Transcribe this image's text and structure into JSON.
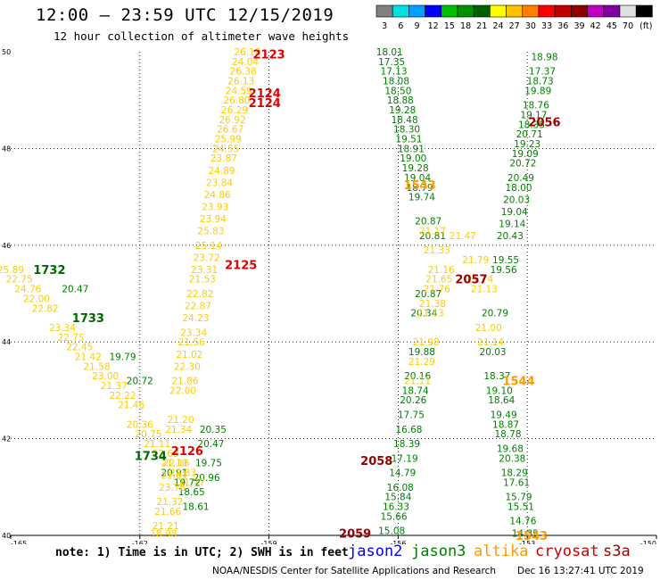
{
  "header": {
    "title": "12:00 – 23:59 UTC 12/15/2019",
    "subtitle": "12 hour collection of altimeter wave heights"
  },
  "colorbar": {
    "colors": [
      "#808080",
      "#00e0e0",
      "#00a0ff",
      "#0000ff",
      "#00c000",
      "#009000",
      "#006000",
      "#ffff00",
      "#ffc000",
      "#ff8000",
      "#ff0000",
      "#c00000",
      "#900000",
      "#c000c0",
      "#8000a0",
      "#e0e0e0",
      "#000000"
    ],
    "labels": [
      "3",
      "6",
      "9",
      "12",
      "15",
      "18",
      "21",
      "24",
      "27",
      "30",
      "33",
      "36",
      "39",
      "42",
      "45",
      "70",
      "(ft)"
    ]
  },
  "footer": {
    "note": "note: 1) Time is in UTC; 2) SWH is in feet",
    "satellites": [
      {
        "name": "jason2",
        "color": "#0000ff"
      },
      {
        "name": "jason3",
        "color": "#008000"
      },
      {
        "name": "altika",
        "color": "#ff9900"
      },
      {
        "name": "cryosat",
        "color": "#cc0000"
      },
      {
        "name": "s3a",
        "color": "#990000"
      }
    ],
    "credit": "NOAA/NESDIS Center for Satellite Applications and Research",
    "timestamp": "Dec 16 13:27:41 UTC 2019"
  },
  "chart_data": {
    "type": "scatter",
    "xlim": [
      -165,
      -150
    ],
    "ylim": [
      40,
      50
    ],
    "x_ticks": [
      "-165",
      "-162",
      "-159",
      "-156",
      "-153",
      "-150"
    ],
    "y_ticks": [
      "40",
      "42",
      "44",
      "46",
      "48",
      "50"
    ],
    "grid": true,
    "series": [
      {
        "name": "jason3",
        "color": "#008000",
        "points": [
          {
            "x": -156.2,
            "y": 50,
            "v": "18.01"
          },
          {
            "x": -156.15,
            "y": 49.8,
            "v": "17.35"
          },
          {
            "x": -156.1,
            "y": 49.6,
            "v": "17.13"
          },
          {
            "x": -156.05,
            "y": 49.4,
            "v": "18.08"
          },
          {
            "x": -156,
            "y": 49.2,
            "v": "18.50"
          },
          {
            "x": -155.95,
            "y": 49,
            "v": "18.88"
          },
          {
            "x": -155.9,
            "y": 48.8,
            "v": "19.28"
          },
          {
            "x": -155.85,
            "y": 48.6,
            "v": "18.48"
          },
          {
            "x": -155.8,
            "y": 48.4,
            "v": "18.30"
          },
          {
            "x": -155.75,
            "y": 48.2,
            "v": "19.51"
          },
          {
            "x": -155.7,
            "y": 48,
            "v": "18.91"
          },
          {
            "x": -155.65,
            "y": 47.8,
            "v": "19.00"
          },
          {
            "x": -155.6,
            "y": 47.6,
            "v": "19.28"
          },
          {
            "x": -155.55,
            "y": 47.4,
            "v": "19.04"
          },
          {
            "x": -155.5,
            "y": 47.2,
            "v": "18.79"
          },
          {
            "x": -155.45,
            "y": 47,
            "v": "19.74"
          },
          {
            "x": -155.3,
            "y": 46.5,
            "v": "20.87"
          },
          {
            "x": -155.2,
            "y": 46.2,
            "v": "20.81"
          },
          {
            "x": -155.3,
            "y": 45,
            "v": "20.87"
          },
          {
            "x": -155.4,
            "y": 44.6,
            "v": "20.34"
          },
          {
            "x": -155.45,
            "y": 43.8,
            "v": "19.88"
          },
          {
            "x": -155.55,
            "y": 43.3,
            "v": "20.16"
          },
          {
            "x": -155.6,
            "y": 43,
            "v": "18.74"
          },
          {
            "x": -155.65,
            "y": 42.8,
            "v": "20.26"
          },
          {
            "x": -155.7,
            "y": 42.5,
            "v": "17.75"
          },
          {
            "x": -155.75,
            "y": 42.2,
            "v": "16.68"
          },
          {
            "x": -155.8,
            "y": 41.9,
            "v": "18.39"
          },
          {
            "x": -155.85,
            "y": 41.6,
            "v": "17.19"
          },
          {
            "x": -155.9,
            "y": 41.3,
            "v": "14.79"
          },
          {
            "x": -155.95,
            "y": 41,
            "v": "16.08"
          },
          {
            "x": -156,
            "y": 40.8,
            "v": "15.84"
          },
          {
            "x": -156.05,
            "y": 40.6,
            "v": "16.33"
          },
          {
            "x": -156.1,
            "y": 40.4,
            "v": "15.66"
          },
          {
            "x": -156.15,
            "y": 40.1,
            "v": "15.08"
          },
          {
            "x": -152.6,
            "y": 49.9,
            "v": "18.98"
          },
          {
            "x": -152.65,
            "y": 49.6,
            "v": "17.37"
          },
          {
            "x": -152.7,
            "y": 49.4,
            "v": "18.73"
          },
          {
            "x": -152.75,
            "y": 49.2,
            "v": "19.89"
          },
          {
            "x": -152.8,
            "y": 48.9,
            "v": "18.76"
          },
          {
            "x": -152.85,
            "y": 48.7,
            "v": "19.17"
          },
          {
            "x": -152.9,
            "y": 48.5,
            "v": "18.35"
          },
          {
            "x": -152.95,
            "y": 48.3,
            "v": "20.71"
          },
          {
            "x": -153,
            "y": 48.1,
            "v": "19.23"
          },
          {
            "x": -153.05,
            "y": 47.9,
            "v": "19.09"
          },
          {
            "x": -153.1,
            "y": 47.7,
            "v": "20.72"
          },
          {
            "x": -153.15,
            "y": 47.4,
            "v": "20.49"
          },
          {
            "x": -153.2,
            "y": 47.2,
            "v": "18.00"
          },
          {
            "x": -153.25,
            "y": 46.95,
            "v": "20.03"
          },
          {
            "x": -153.3,
            "y": 46.7,
            "v": "19.04"
          },
          {
            "x": -153.35,
            "y": 46.45,
            "v": "19.14"
          },
          {
            "x": -153.4,
            "y": 46.2,
            "v": "20.43"
          },
          {
            "x": -153.5,
            "y": 45.7,
            "v": "19.55"
          },
          {
            "x": -153.55,
            "y": 45.5,
            "v": "19.56"
          },
          {
            "x": -153.75,
            "y": 44.6,
            "v": "20.79"
          },
          {
            "x": -153.8,
            "y": 43.8,
            "v": "20.03"
          },
          {
            "x": -153.7,
            "y": 43.3,
            "v": "18.37"
          },
          {
            "x": -153.65,
            "y": 43,
            "v": "19.10"
          },
          {
            "x": -153.6,
            "y": 42.8,
            "v": "18.64"
          },
          {
            "x": -153.55,
            "y": 42.5,
            "v": "19.49"
          },
          {
            "x": -153.5,
            "y": 42.3,
            "v": "18.87"
          },
          {
            "x": -153.45,
            "y": 42.1,
            "v": "18.78"
          },
          {
            "x": -153.4,
            "y": 41.8,
            "v": "19.68"
          },
          {
            "x": -153.35,
            "y": 41.6,
            "v": "20.38"
          },
          {
            "x": -153.3,
            "y": 41.3,
            "v": "18.29"
          },
          {
            "x": -153.25,
            "y": 41.1,
            "v": "17.61"
          },
          {
            "x": -153.2,
            "y": 40.8,
            "v": "15.79"
          },
          {
            "x": -153.15,
            "y": 40.6,
            "v": "15.51"
          },
          {
            "x": -153.1,
            "y": 40.3,
            "v": "14.76"
          },
          {
            "x": -153.05,
            "y": 40.05,
            "v": "14.35"
          },
          {
            "x": -163.5,
            "y": 45.1,
            "v": "20.47"
          },
          {
            "x": -162.4,
            "y": 43.7,
            "v": "19.79"
          },
          {
            "x": -162,
            "y": 43.2,
            "v": "20.72"
          },
          {
            "x": -161.2,
            "y": 41.3,
            "v": "20.91"
          },
          {
            "x": -160.9,
            "y": 41.1,
            "v": "19.72"
          },
          {
            "x": -160.8,
            "y": 40.9,
            "v": "18.65"
          },
          {
            "x": -160.7,
            "y": 40.6,
            "v": "18.61"
          },
          {
            "x": -160.3,
            "y": 42.2,
            "v": "20.35"
          },
          {
            "x": -160.35,
            "y": 41.9,
            "v": "20.47"
          },
          {
            "x": -160.4,
            "y": 41.5,
            "v": "19.75"
          },
          {
            "x": -160.45,
            "y": 41.2,
            "v": "20.96"
          }
        ]
      },
      {
        "name": "altika",
        "color": "#ffcc00",
        "points": [
          {
            "x": -159.5,
            "y": 50,
            "v": "26.18"
          },
          {
            "x": -159.55,
            "y": 49.8,
            "v": "24.04"
          },
          {
            "x": -159.6,
            "y": 49.6,
            "v": "26.38"
          },
          {
            "x": -159.65,
            "y": 49.4,
            "v": "26.13"
          },
          {
            "x": -159.7,
            "y": 49.2,
            "v": "24.59"
          },
          {
            "x": -159.75,
            "y": 49,
            "v": "26.80"
          },
          {
            "x": -159.8,
            "y": 48.8,
            "v": "26.29"
          },
          {
            "x": -159.85,
            "y": 48.6,
            "v": "26.92"
          },
          {
            "x": -159.9,
            "y": 48.4,
            "v": "26.67"
          },
          {
            "x": -159.95,
            "y": 48.2,
            "v": "25.99"
          },
          {
            "x": -160,
            "y": 48,
            "v": "24.55"
          },
          {
            "x": -160.05,
            "y": 47.8,
            "v": "23.87"
          },
          {
            "x": -160.1,
            "y": 47.55,
            "v": "24.89"
          },
          {
            "x": -160.15,
            "y": 47.3,
            "v": "23.84"
          },
          {
            "x": -160.2,
            "y": 47.05,
            "v": "24.86"
          },
          {
            "x": -160.25,
            "y": 46.8,
            "v": "23.93"
          },
          {
            "x": -160.3,
            "y": 46.55,
            "v": "23.94"
          },
          {
            "x": -160.35,
            "y": 46.3,
            "v": "25.83"
          },
          {
            "x": -160.4,
            "y": 46,
            "v": "25.14"
          },
          {
            "x": -160.45,
            "y": 45.75,
            "v": "23.72"
          },
          {
            "x": -160.5,
            "y": 45.5,
            "v": "23.31"
          },
          {
            "x": -160.55,
            "y": 45.3,
            "v": "21.53"
          },
          {
            "x": -160.6,
            "y": 45,
            "v": "22.82"
          },
          {
            "x": -160.65,
            "y": 44.75,
            "v": "22.87"
          },
          {
            "x": -160.7,
            "y": 44.5,
            "v": "24.23"
          },
          {
            "x": -160.75,
            "y": 44.2,
            "v": "23.34"
          },
          {
            "x": -160.8,
            "y": 44,
            "v": "21.56"
          },
          {
            "x": -160.85,
            "y": 43.75,
            "v": "21.02"
          },
          {
            "x": -160.9,
            "y": 43.5,
            "v": "22.30"
          },
          {
            "x": -160.95,
            "y": 43.2,
            "v": "21.86"
          },
          {
            "x": -161,
            "y": 43,
            "v": "22.00"
          },
          {
            "x": -161.05,
            "y": 42.4,
            "v": "21.20"
          },
          {
            "x": -161.1,
            "y": 42.2,
            "v": "21.34"
          },
          {
            "x": -161.15,
            "y": 41.5,
            "v": "22.16"
          },
          {
            "x": -161.2,
            "y": 41.25,
            "v": "21.01"
          },
          {
            "x": -161.25,
            "y": 41,
            "v": "23.76"
          },
          {
            "x": -161.3,
            "y": 40.7,
            "v": "21.32"
          },
          {
            "x": -161.35,
            "y": 40.5,
            "v": "21.66"
          },
          {
            "x": -161.4,
            "y": 40.2,
            "v": "21.21"
          },
          {
            "x": -161.45,
            "y": 40.05,
            "v": "18.98"
          },
          {
            "x": -165,
            "y": 45.5,
            "v": "25.89"
          },
          {
            "x": -164.8,
            "y": 45.3,
            "v": "22.75"
          },
          {
            "x": -164.6,
            "y": 45.1,
            "v": "24.76"
          },
          {
            "x": -164.4,
            "y": 44.9,
            "v": "22.00"
          },
          {
            "x": -164.2,
            "y": 44.7,
            "v": "22.82"
          },
          {
            "x": -163.8,
            "y": 44.3,
            "v": "23.34"
          },
          {
            "x": -163.6,
            "y": 44.1,
            "v": "22.75"
          },
          {
            "x": -163.4,
            "y": 43.9,
            "v": "22.45"
          },
          {
            "x": -163.2,
            "y": 43.7,
            "v": "21.42"
          },
          {
            "x": -163,
            "y": 43.5,
            "v": "21.58"
          },
          {
            "x": -162.8,
            "y": 43.3,
            "v": "23.00"
          },
          {
            "x": -162.6,
            "y": 43.1,
            "v": "21.37"
          },
          {
            "x": -162.4,
            "y": 42.9,
            "v": "22.22"
          },
          {
            "x": -162.2,
            "y": 42.7,
            "v": "21.46"
          },
          {
            "x": -162,
            "y": 42.3,
            "v": "20.36"
          },
          {
            "x": -161.8,
            "y": 42.1,
            "v": "20.75"
          },
          {
            "x": -161.6,
            "y": 41.9,
            "v": "21.11"
          },
          {
            "x": -161.4,
            "y": 41.7,
            "v": "22.63"
          },
          {
            "x": -161.2,
            "y": 41.5,
            "v": "21.10"
          },
          {
            "x": -161,
            "y": 41.3,
            "v": "22.83"
          },
          {
            "x": -160.8,
            "y": 41.1,
            "v": "21.77"
          },
          {
            "x": -155.2,
            "y": 46.3,
            "v": "21.17"
          },
          {
            "x": -155.1,
            "y": 45.9,
            "v": "21.33"
          },
          {
            "x": -155,
            "y": 45.5,
            "v": "21.16"
          },
          {
            "x": -155.05,
            "y": 45.3,
            "v": "21.65"
          },
          {
            "x": -155.1,
            "y": 45.1,
            "v": "21.76"
          },
          {
            "x": -155.2,
            "y": 44.8,
            "v": "21.38"
          },
          {
            "x": -155.25,
            "y": 44.6,
            "v": "21.13"
          },
          {
            "x": -155.35,
            "y": 44,
            "v": "21.98"
          },
          {
            "x": -155.45,
            "y": 43.6,
            "v": "21.29"
          },
          {
            "x": -155.55,
            "y": 43.2,
            "v": "21.11"
          },
          {
            "x": -154.5,
            "y": 46.2,
            "v": "21.47"
          },
          {
            "x": -154.2,
            "y": 45.7,
            "v": "21.79"
          },
          {
            "x": -154.1,
            "y": 45.3,
            "v": "21.74"
          },
          {
            "x": -154,
            "y": 45.1,
            "v": "21.13"
          },
          {
            "x": -153.9,
            "y": 44.3,
            "v": "21.00"
          },
          {
            "x": -153.85,
            "y": 44,
            "v": "21.14"
          }
        ]
      }
    ],
    "passes": [
      {
        "label": "2123",
        "x": -159.0,
        "y": 49.95,
        "color": "#dd0000"
      },
      {
        "label": "2124",
        "x": -159.1,
        "y": 49.15,
        "color": "#dd0000"
      },
      {
        "label": "2124",
        "x": -159.1,
        "y": 48.95,
        "color": "#dd0000"
      },
      {
        "label": "2125",
        "x": -159.65,
        "y": 45.6,
        "color": "#dd0000"
      },
      {
        "label": "2126",
        "x": -160.9,
        "y": 41.75,
        "color": "#dd0000"
      },
      {
        "label": "2056",
        "x": -152.6,
        "y": 48.55,
        "color": "#990000"
      },
      {
        "label": "2057",
        "x": -154.3,
        "y": 45.3,
        "color": "#990000"
      },
      {
        "label": "2058",
        "x": -156.5,
        "y": 41.55,
        "color": "#990000"
      },
      {
        "label": "2059",
        "x": -157.0,
        "y": 40.05,
        "color": "#990000"
      },
      {
        "label": "1543",
        "x": -155.5,
        "y": 47.25,
        "color": "#ff9900"
      },
      {
        "label": "1544",
        "x": -153.2,
        "y": 43.2,
        "color": "#ff9900"
      },
      {
        "label": "1543",
        "x": -152.9,
        "y": 40.0,
        "color": "#ff9900"
      },
      {
        "label": "1732",
        "x": -164.1,
        "y": 45.5,
        "color": "#006600"
      },
      {
        "label": "1733",
        "x": -163.2,
        "y": 44.5,
        "color": "#006600"
      },
      {
        "label": "1734",
        "x": -161.75,
        "y": 41.65,
        "color": "#006600"
      }
    ]
  }
}
